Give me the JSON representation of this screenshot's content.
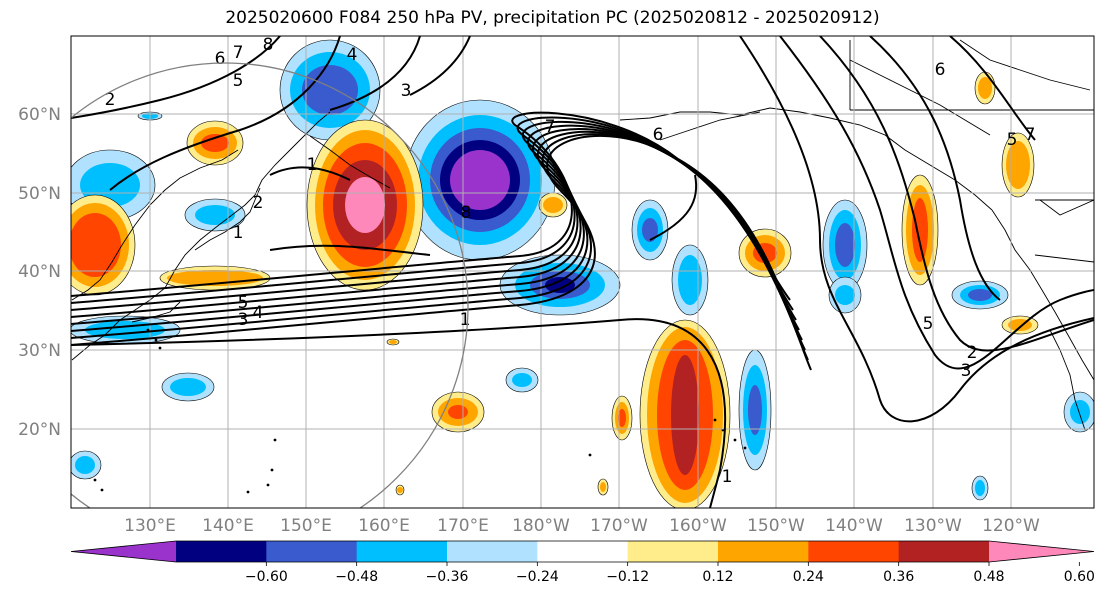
{
  "chart_data": {
    "type": "map",
    "title": "2025020600 F084 250 hPa PV, precipitation PC (2025020812 - 2025020912)",
    "lat_ticks": [
      "60°N",
      "50°N",
      "40°N",
      "30°N",
      "20°N"
    ],
    "lon_ticks": [
      "130°E",
      "140°E",
      "150°E",
      "160°E",
      "170°E",
      "180°W",
      "170°W",
      "160°W",
      "150°W",
      "140°W",
      "130°W",
      "120°W"
    ],
    "lat_range": [
      10,
      70
    ],
    "lon_range_east": [
      120,
      250
    ],
    "colorbar": {
      "levels": [
        -0.6,
        -0.48,
        -0.36,
        -0.24,
        -0.12,
        0.12,
        0.24,
        0.36,
        0.48,
        0.6
      ],
      "tick_labels": [
        "−0.60",
        "−0.48",
        "−0.36",
        "−0.24",
        "−0.12",
        "0.12",
        "0.24",
        "0.36",
        "0.48",
        "0.60"
      ],
      "colors": [
        "#9933cc",
        "#000080",
        "#3a5bcd",
        "#00bfff",
        "#b0e2ff",
        "#ffffff",
        "#ffec8b",
        "#ffa500",
        "#ff4500",
        "#b22222",
        "#ff88bb"
      ],
      "extend": "both"
    },
    "contour_labels": [
      "8",
      "7",
      "6",
      "5",
      "4",
      "3",
      "2",
      "1",
      "7",
      "6",
      "2",
      "1",
      "8",
      "5",
      "4",
      "3",
      "1",
      "1",
      "5",
      "3",
      "2",
      "6",
      "7",
      "5"
    ]
  }
}
